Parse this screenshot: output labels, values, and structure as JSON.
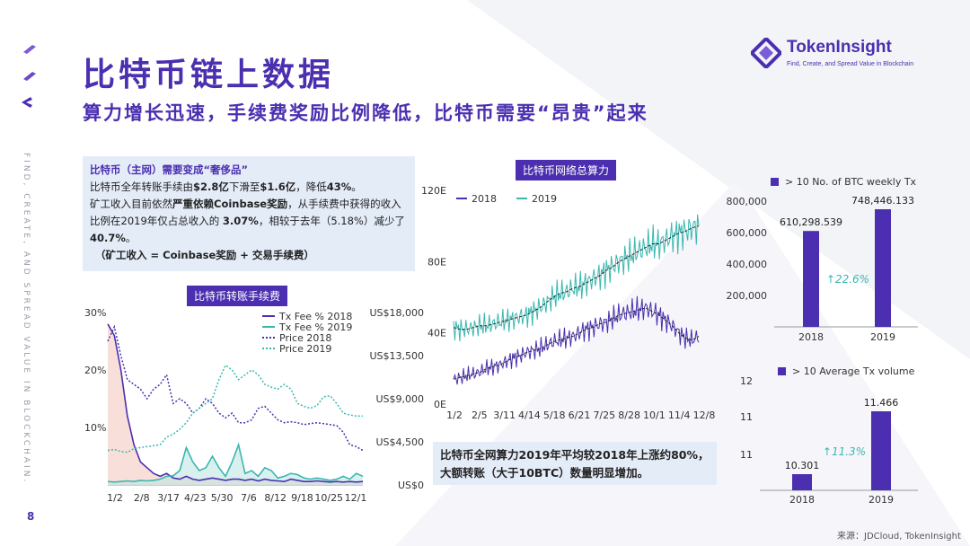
{
  "page": {
    "title": "比特币链上数据",
    "subtitle": "算力增长迅速，手续费奖励比例降低，比特币需要“昂贵”起来",
    "page_number": "8",
    "vertical_text": "FIND, CREATE, AND SPREAD VALUE IN BLOCKCHAIN.",
    "source": "来源：JDCloud, TokenInsight",
    "colors": {
      "brand": "#4b2fb0",
      "teal": "#3ab7b0",
      "box": "#e4ecf8",
      "pink_fill": "#f8d7cf"
    }
  },
  "logo": {
    "name": "TokenInsight",
    "tagline": "Find, Create, and Spread Value in Blockchain",
    "icon": "tokeninsight-logo-icon"
  },
  "infobox": {
    "heading": "比特币（主网）需要变成“奢侈品”",
    "line1_pre": "比特币全年转账手续由",
    "line1_v1": "$2.8亿",
    "line1_mid": "下滑至",
    "line1_v2": "$1.6亿",
    "line1_mid2": "，降低",
    "line1_v3": "43%",
    "line1_end": "。",
    "line2_pre": "矿工收入目前依然",
    "line2_bold": "严重依赖Coinbase奖励",
    "line2_mid": "，从手续费中获得的收入比例在2019年仅占总收入的 ",
    "line2_v1": "3.07%",
    "line2_mid2": "，相较于去年（5.18%）减少了",
    "line2_v2": "40.7%",
    "line2_end": "。",
    "formula": "（矿工收入 = Coinbase奖励 + 交易手续费）"
  },
  "labels": {
    "fee_chart_pill": "比特币转账手续费",
    "hash_chart_pill": "比特币网络总算力",
    "note_line1": "比特币全网算力2019年平均较2018年上涨约80%，",
    "note_line2": "大额转账（大于10BTC）数量明显增加。"
  },
  "chart_data": [
    {
      "type": "line",
      "id": "fee_chart",
      "title": "比特币转账手续费",
      "x_ticks": [
        "1/2",
        "2/8",
        "3/17",
        "4/23",
        "5/30",
        "7/6",
        "8/12",
        "9/18",
        "10/25",
        "12/1"
      ],
      "y_left_ticks": [
        "10%",
        "20%",
        "30%"
      ],
      "y_left_range": [
        0,
        30
      ],
      "y_right_ticks": [
        "US$0",
        "US$4,500",
        "US$9,000",
        "US$13,500",
        "US$18,000"
      ],
      "y_right_range": [
        0,
        18000
      ],
      "legend": [
        "Tx Fee % 2018",
        "Tx Fee % 2019",
        "Price 2018",
        "Price 2019"
      ],
      "series": [
        {
          "name": "Tx Fee % 2018",
          "axis": "left",
          "style": "solid",
          "color": "#4b2fb0",
          "values": [
            28,
            26,
            20,
            12,
            7,
            4,
            3,
            2,
            1.5,
            2,
            1.2,
            1,
            1.5,
            1,
            0.8,
            1,
            1.2,
            1,
            0.8,
            1,
            1,
            0.8,
            1,
            0.7,
            1,
            0.8,
            0.7,
            0.6,
            1,
            0.8,
            0.6,
            0.6,
            0.7,
            0.6,
            0.5,
            0.6,
            0.5,
            0.6,
            0.5,
            0.6
          ]
        },
        {
          "name": "Tx Fee % 2019",
          "axis": "left",
          "style": "solid",
          "color": "#3ab7b0",
          "values": [
            0.6,
            0.5,
            0.6,
            0.7,
            0.6,
            0.8,
            0.7,
            0.8,
            1.0,
            1.5,
            1.6,
            2.5,
            6.5,
            4,
            2.5,
            3,
            5,
            3,
            1.5,
            4,
            7,
            2,
            2.5,
            1.5,
            3,
            2.5,
            1.2,
            1.5,
            2,
            1.8,
            1.2,
            1,
            1.2,
            1,
            0.8,
            1,
            1.5,
            1,
            2,
            1.5
          ]
        },
        {
          "name": "Price 2018",
          "axis": "right",
          "style": "dotted",
          "color": "#4b2fb0",
          "values": [
            15000,
            16500,
            13500,
            11000,
            10500,
            10000,
            9000,
            10000,
            10500,
            11500,
            8500,
            9000,
            8500,
            7500,
            8000,
            9000,
            8500,
            7500,
            7000,
            7500,
            6500,
            6500,
            6800,
            8000,
            8200,
            7500,
            6800,
            6500,
            6600,
            6500,
            6300,
            6400,
            6500,
            6400,
            6300,
            6200,
            5500,
            4200,
            4000,
            3600
          ]
        },
        {
          "name": "Price 2019",
          "axis": "right",
          "style": "dotted",
          "color": "#3ab7b0",
          "values": [
            3600,
            3700,
            3500,
            3400,
            3800,
            3900,
            4000,
            4100,
            4200,
            5000,
            5300,
            5800,
            6500,
            7500,
            8000,
            8500,
            9000,
            11000,
            12500,
            12000,
            11000,
            11500,
            12000,
            11500,
            10500,
            10200,
            10000,
            10500,
            10000,
            8500,
            8200,
            8000,
            8300,
            9200,
            9300,
            8500,
            7500,
            7300,
            7200,
            7200
          ]
        }
      ]
    },
    {
      "type": "line",
      "id": "hashrate_chart",
      "title": "比特币网络总算力",
      "x_ticks": [
        "1/2",
        "2/5",
        "3/11",
        "4/14",
        "5/18",
        "6/21",
        "7/25",
        "8/28",
        "10/1",
        "11/4",
        "12/8"
      ],
      "y_ticks": [
        "0E",
        "40E",
        "80E",
        "120E"
      ],
      "y_range": [
        0,
        120
      ],
      "legend": [
        "2018",
        "2019"
      ],
      "series": [
        {
          "name": "2018",
          "color": "#4b2fb0",
          "values": [
            14,
            15,
            16,
            17,
            18,
            20,
            21,
            22,
            24,
            26,
            27,
            29,
            30,
            31,
            33,
            35,
            36,
            37,
            38,
            40,
            42,
            43,
            45,
            46,
            48,
            50,
            51,
            52,
            53,
            54,
            52,
            50,
            47,
            44,
            40,
            37,
            36,
            38
          ]
        },
        {
          "name": "2019",
          "color": "#3ab7b0",
          "values": [
            43,
            42,
            42,
            43,
            44,
            44,
            45,
            46,
            47,
            48,
            49,
            50,
            52,
            54,
            57,
            60,
            62,
            63,
            65,
            66,
            68,
            70,
            72,
            75,
            77,
            80,
            82,
            84,
            86,
            88,
            90,
            90,
            92,
            94,
            96,
            97,
            99,
            100
          ]
        }
      ]
    },
    {
      "type": "bar",
      "id": "weekly_tx_chart",
      "legend": "> 10 No. of BTC weekly Tx",
      "categories": [
        "2018",
        "2019"
      ],
      "values": [
        610298.539,
        748446.133
      ],
      "value_labels": [
        "610,298.539",
        "748,446.133"
      ],
      "y_ticks": [
        "200,000",
        "400,000",
        "600,000",
        "800,000"
      ],
      "y_range": [
        0,
        800000
      ],
      "annotation": "↑22.6%"
    },
    {
      "type": "bar",
      "id": "avg_tx_chart",
      "legend": "> 10 Average Tx volume",
      "categories": [
        "2018",
        "2019"
      ],
      "values": [
        10.301,
        11.466
      ],
      "value_labels": [
        "10.301",
        "11.466"
      ],
      "y_ticks": [
        "11",
        "11",
        "12"
      ],
      "y_range": [
        10,
        12
      ],
      "annotation": "↑11.3%"
    }
  ]
}
